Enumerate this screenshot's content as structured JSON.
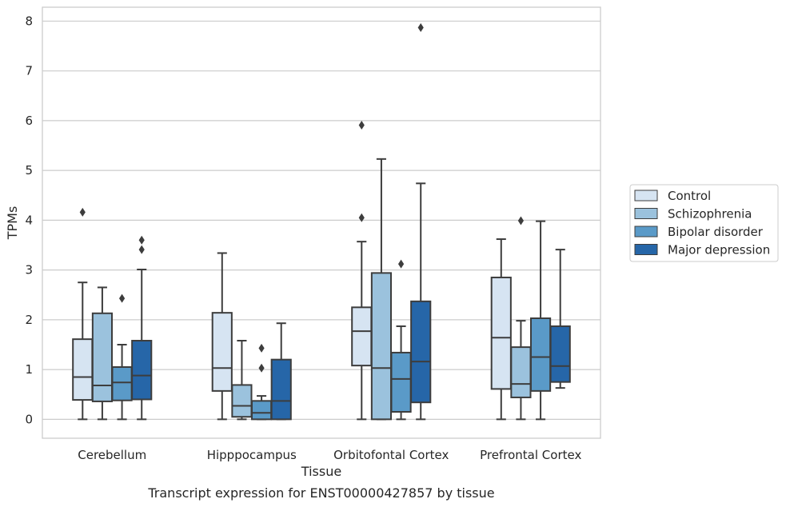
{
  "chart_data": {
    "type": "box",
    "title": "",
    "caption": "Transcript expression for ENST00000427857 by tissue",
    "xlabel": "Tissue",
    "ylabel": "TPMs",
    "ylim": [
      -0.38,
      8.28
    ],
    "yticks": [
      0,
      1,
      2,
      3,
      4,
      5,
      6,
      7,
      8
    ],
    "grid": "horizontal",
    "legend_position": "right",
    "categories": [
      "Cerebellum",
      "Hipppocampus",
      "Orbitofontal Cortex",
      "Prefrontal Cortex"
    ],
    "series": [
      {
        "name": "Control",
        "color": "#d6e4f2",
        "boxes": [
          {
            "whisker_low": 0,
            "q1": 0.39,
            "median": 0.85,
            "q3": 1.61,
            "whisker_high": 2.75,
            "outliers": [
              4.16
            ]
          },
          {
            "whisker_low": 0,
            "q1": 0.57,
            "median": 1.03,
            "q3": 2.14,
            "whisker_high": 3.34,
            "outliers": []
          },
          {
            "whisker_low": 0,
            "q1": 1.08,
            "median": 1.77,
            "q3": 2.25,
            "whisker_high": 3.57,
            "outliers": [
              4.05,
              5.91
            ]
          },
          {
            "whisker_low": 0,
            "q1": 0.61,
            "median": 1.64,
            "q3": 2.85,
            "whisker_high": 3.62,
            "outliers": []
          }
        ]
      },
      {
        "name": "Schizophrenia",
        "color": "#9bc2dd",
        "boxes": [
          {
            "whisker_low": 0,
            "q1": 0.36,
            "median": 0.68,
            "q3": 2.13,
            "whisker_high": 2.65,
            "outliers": []
          },
          {
            "whisker_low": 0,
            "q1": 0.05,
            "median": 0.27,
            "q3": 0.69,
            "whisker_high": 1.58,
            "outliers": []
          },
          {
            "whisker_low": 0,
            "q1": 0.0,
            "median": 1.03,
            "q3": 2.94,
            "whisker_high": 5.23,
            "outliers": []
          },
          {
            "whisker_low": 0,
            "q1": 0.44,
            "median": 0.71,
            "q3": 1.45,
            "whisker_high": 1.98,
            "outliers": [
              3.99
            ]
          }
        ]
      },
      {
        "name": "Bipolar disorder",
        "color": "#5a9ac8",
        "boxes": [
          {
            "whisker_low": 0,
            "q1": 0.38,
            "median": 0.74,
            "q3": 1.05,
            "whisker_high": 1.5,
            "outliers": [
              2.43
            ]
          },
          {
            "whisker_low": 0,
            "q1": 0.0,
            "median": 0.13,
            "q3": 0.37,
            "whisker_high": 0.47,
            "outliers": [
              1.03,
              1.43
            ]
          },
          {
            "whisker_low": 0,
            "q1": 0.15,
            "median": 0.81,
            "q3": 1.34,
            "whisker_high": 1.87,
            "outliers": [
              3.12
            ]
          },
          {
            "whisker_low": 0,
            "q1": 0.57,
            "median": 1.25,
            "q3": 2.03,
            "whisker_high": 3.98,
            "outliers": []
          }
        ]
      },
      {
        "name": "Major depression",
        "color": "#2666a8",
        "boxes": [
          {
            "whisker_low": 0,
            "q1": 0.4,
            "median": 0.88,
            "q3": 1.58,
            "whisker_high": 3.01,
            "outliers": [
              3.41,
              3.6
            ]
          },
          {
            "whisker_low": 0,
            "q1": 0.0,
            "median": 0.37,
            "q3": 1.2,
            "whisker_high": 1.93,
            "outliers": []
          },
          {
            "whisker_low": 0,
            "q1": 0.34,
            "median": 1.16,
            "q3": 2.37,
            "whisker_high": 4.74,
            "outliers": [
              7.87
            ]
          },
          {
            "whisker_low": 0.63,
            "q1": 0.75,
            "median": 1.07,
            "q3": 1.87,
            "whisker_high": 3.41,
            "outliers": []
          }
        ]
      }
    ]
  }
}
